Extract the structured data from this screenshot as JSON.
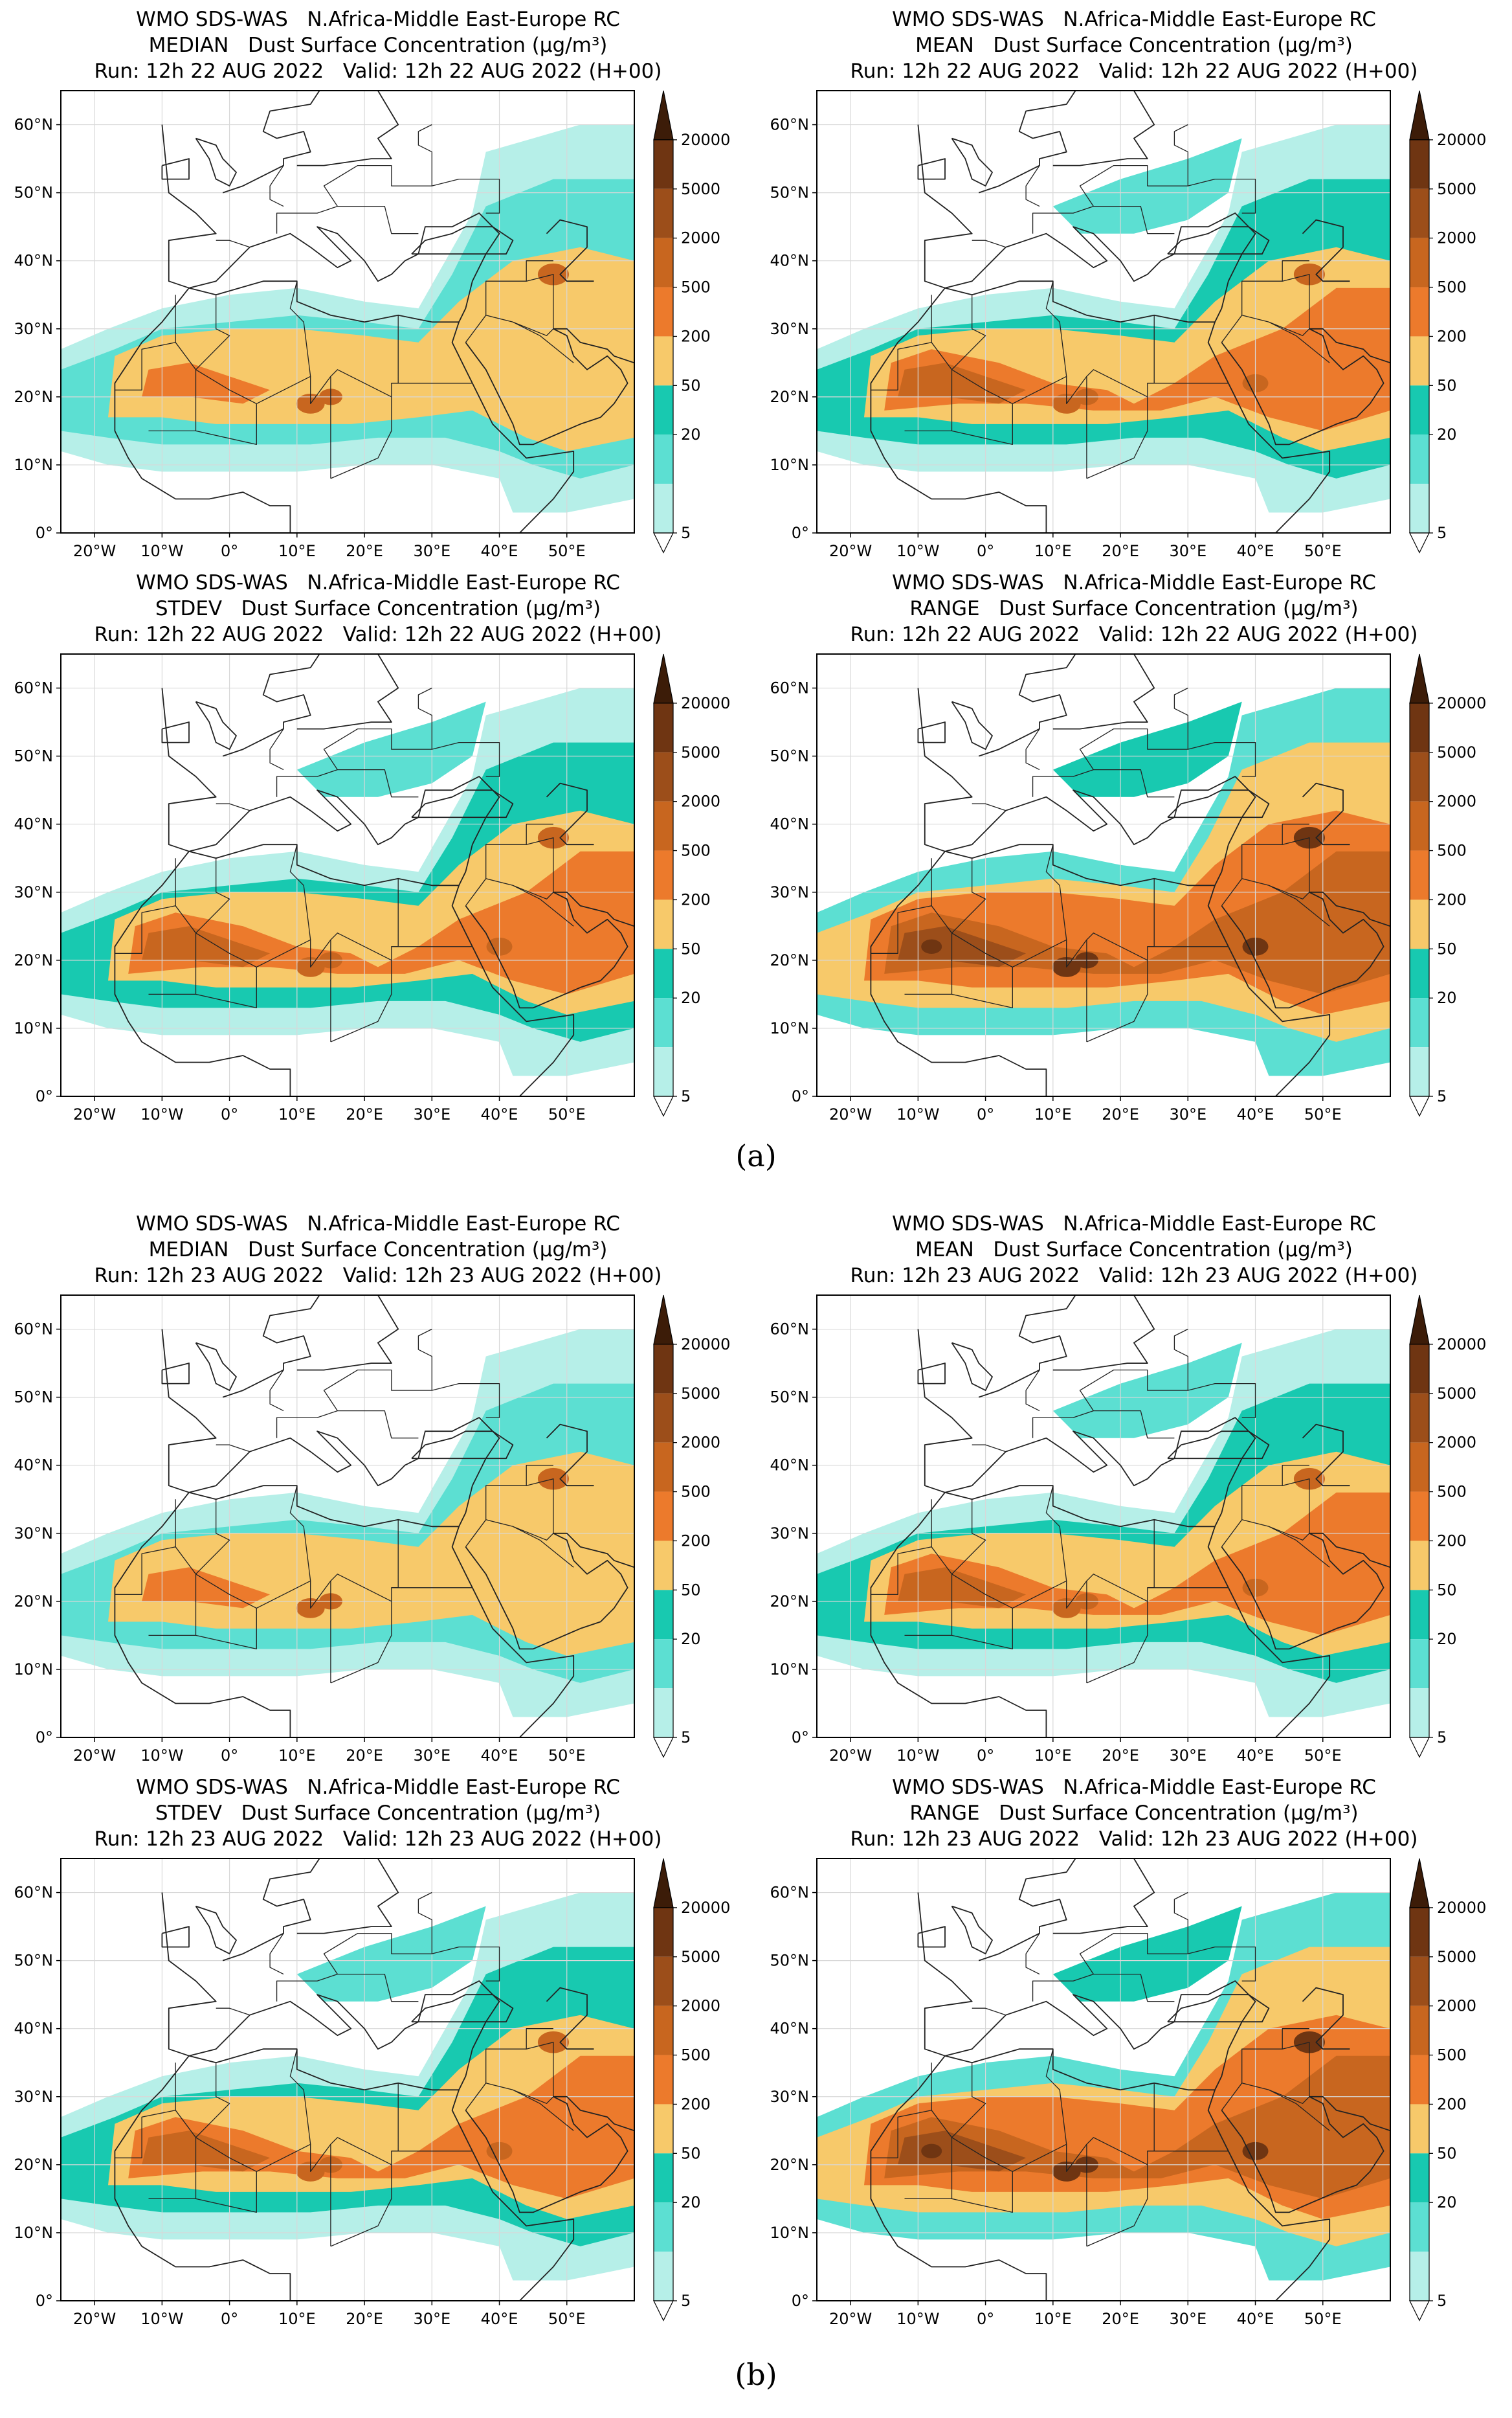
{
  "colors": {
    "land_bg": "#ffffff",
    "frame": "#000000",
    "grid": "#d8d8d8",
    "coast": "#222222",
    "levels": [
      "#b6efe8",
      "#5cdfd2",
      "#18c9b0",
      "#f7c96a",
      "#ec7a2c",
      "#c8661f",
      "#9c4e1a",
      "#6f3512",
      "#3c1c08"
    ]
  },
  "map": {
    "lon_range": [
      -25,
      60
    ],
    "lat_range": [
      0,
      65
    ],
    "lon_ticks": [
      {
        "value": -20,
        "label": "20°W"
      },
      {
        "value": -10,
        "label": "10°W"
      },
      {
        "value": 0,
        "label": "0°"
      },
      {
        "value": 10,
        "label": "10°E"
      },
      {
        "value": 20,
        "label": "20°E"
      },
      {
        "value": 30,
        "label": "30°E"
      },
      {
        "value": 40,
        "label": "40°E"
      },
      {
        "value": 50,
        "label": "50°E"
      }
    ],
    "lat_ticks": [
      {
        "value": 0,
        "label": "0°"
      },
      {
        "value": 10,
        "label": "10°N"
      },
      {
        "value": 20,
        "label": "20°N"
      },
      {
        "value": 30,
        "label": "30°N"
      },
      {
        "value": 40,
        "label": "40°N"
      },
      {
        "value": 50,
        "label": "50°N"
      },
      {
        "value": 60,
        "label": "60°N"
      }
    ]
  },
  "colorbar": {
    "labels": [
      "20000",
      "5000",
      "2000",
      "500",
      "200",
      "50",
      "20",
      "5"
    ],
    "units": "µg/m³"
  },
  "groups": [
    {
      "caption": "(a)",
      "panels": [
        {
          "stat": "MEDIAN",
          "title_line1": "WMO SDS-WAS   N.Africa-Middle East-Europe RC",
          "title_line2": "MEDIAN   Dust Surface Concentration (µg/m³)",
          "title_line3": "Run: 12h 22 AUG 2022   Valid: 12h 22 AUG 2022 (H+00)",
          "intensity": 2
        },
        {
          "stat": "MEAN",
          "title_line1": "WMO SDS-WAS   N.Africa-Middle East-Europe RC",
          "title_line2": "MEAN   Dust Surface Concentration (µg/m³)",
          "title_line3": "Run: 12h 22 AUG 2022   Valid: 12h 22 AUG 2022 (H+00)",
          "intensity": 3
        },
        {
          "stat": "STDEV",
          "title_line1": "WMO SDS-WAS   N.Africa-Middle East-Europe RC",
          "title_line2": "STDEV   Dust Surface Concentration (µg/m³)",
          "title_line3": "Run: 12h 22 AUG 2022   Valid: 12h 22 AUG 2022 (H+00)",
          "intensity": 3
        },
        {
          "stat": "RANGE",
          "title_line1": "WMO SDS-WAS   N.Africa-Middle East-Europe RC",
          "title_line2": "RANGE   Dust Surface Concentration (µg/m³)",
          "title_line3": "Run: 12h 22 AUG 2022   Valid: 12h 22 AUG 2022 (H+00)",
          "intensity": 4
        }
      ]
    },
    {
      "caption": "(b)",
      "panels": [
        {
          "stat": "MEDIAN",
          "title_line1": "WMO SDS-WAS   N.Africa-Middle East-Europe RC",
          "title_line2": "MEDIAN   Dust Surface Concentration (µg/m³)",
          "title_line3": "Run: 12h 23 AUG 2022   Valid: 12h 23 AUG 2022 (H+00)",
          "intensity": 2
        },
        {
          "stat": "MEAN",
          "title_line1": "WMO SDS-WAS   N.Africa-Middle East-Europe RC",
          "title_line2": "MEAN   Dust Surface Concentration (µg/m³)",
          "title_line3": "Run: 12h 23 AUG 2022   Valid: 12h 23 AUG 2022 (H+00)",
          "intensity": 3
        },
        {
          "stat": "STDEV",
          "title_line1": "WMO SDS-WAS   N.Africa-Middle East-Europe RC",
          "title_line2": "STDEV   Dust Surface Concentration (µg/m³)",
          "title_line3": "Run: 12h 23 AUG 2022   Valid: 12h 23 AUG 2022 (H+00)",
          "intensity": 3
        },
        {
          "stat": "RANGE",
          "title_line1": "WMO SDS-WAS   N.Africa-Middle East-Europe RC",
          "title_line2": "RANGE   Dust Surface Concentration (µg/m³)",
          "title_line3": "Run: 12h 23 AUG 2022   Valid: 12h 23 AUG 2022 (H+00)",
          "intensity": 4
        }
      ]
    }
  ]
}
